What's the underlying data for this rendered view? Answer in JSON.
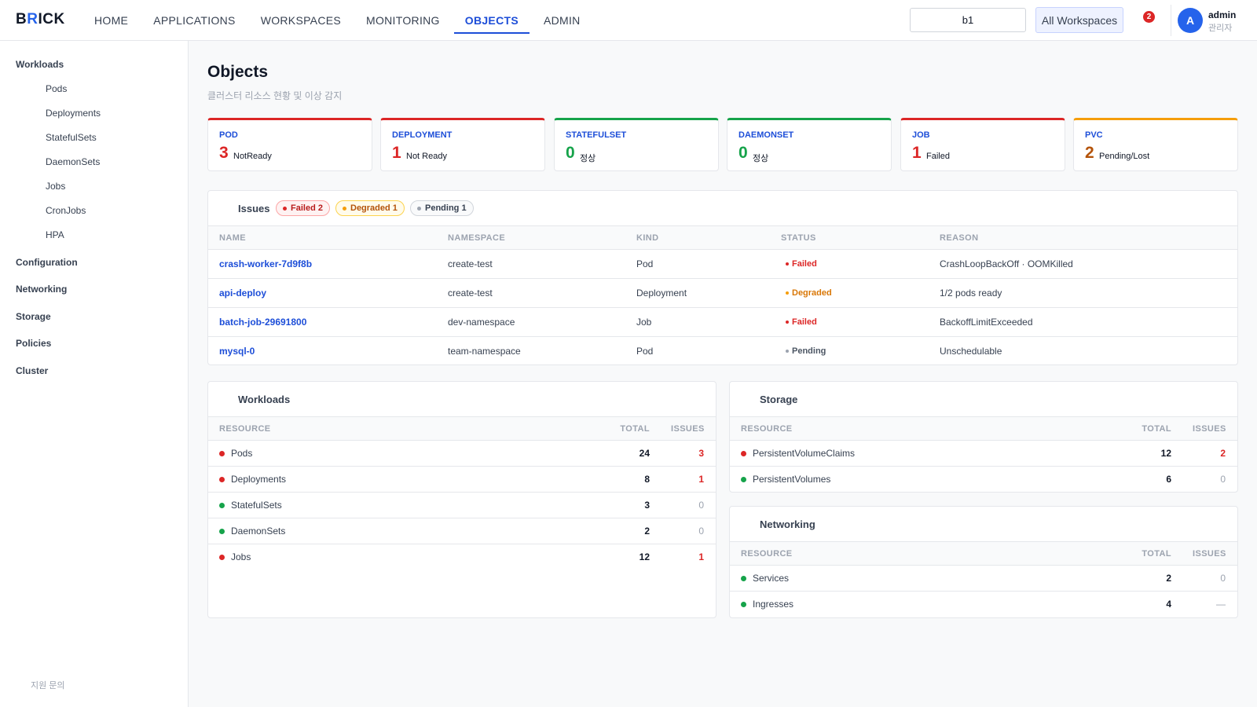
{
  "brand": {
    "b": "B",
    "r": "R",
    "rest": "ICK"
  },
  "nav": [
    "HOME",
    "APPLICATIONS",
    "WORKSPACES",
    "MONITORING",
    "OBJECTS",
    "ADMIN"
  ],
  "nav_active": "OBJECTS",
  "search": {
    "value": "b1"
  },
  "workspace_button": "All Workspaces",
  "notifications": "2",
  "user": {
    "initial": "A",
    "name": "admin",
    "role": "관리자"
  },
  "sidebar": {
    "workloads": "Workloads",
    "workload_items": [
      "Pods",
      "Deployments",
      "StatefulSets",
      "DaemonSets",
      "Jobs",
      "CronJobs",
      "HPA"
    ],
    "groups": [
      "Configuration",
      "Networking",
      "Storage",
      "Policies",
      "Cluster"
    ],
    "footer": "지원 문의"
  },
  "page": {
    "title": "Objects",
    "subtitle": "클러스터 리소스 현황 및 이상 감지"
  },
  "cards": [
    {
      "kind": "POD",
      "count": "3",
      "label": "NotReady",
      "color": "#dc2626"
    },
    {
      "kind": "DEPLOYMENT",
      "count": "1",
      "label": "Not Ready",
      "color": "#dc2626"
    },
    {
      "kind": "STATEFULSET",
      "count": "0",
      "label": "정상",
      "color": "#16a34a"
    },
    {
      "kind": "DAEMONSET",
      "count": "0",
      "label": "정상",
      "color": "#16a34a"
    },
    {
      "kind": "JOB",
      "count": "1",
      "label": "Failed",
      "color": "#dc2626"
    },
    {
      "kind": "PVC",
      "count": "2",
      "label": "Pending/Lost",
      "color": "#b45309",
      "border": "#f59e0b"
    }
  ],
  "issues": {
    "title": "Issues",
    "pills": {
      "failed": "Failed 2",
      "degraded": "Degraded 1",
      "pending": "Pending 1"
    },
    "headers": [
      "NAME",
      "NAMESPACE",
      "KIND",
      "STATUS",
      "REASON"
    ],
    "rows": [
      {
        "name": "crash-worker-7d9f8b",
        "namespace": "create-test",
        "kind": "Pod",
        "status": "Failed",
        "reason": "CrashLoopBackOff · OOMKilled"
      },
      {
        "name": "api-deploy",
        "namespace": "create-test",
        "kind": "Deployment",
        "status": "Degraded",
        "reason": "1/2 pods ready"
      },
      {
        "name": "batch-job-29691800",
        "namespace": "dev-namespace",
        "kind": "Job",
        "status": "Failed",
        "reason": "BackoffLimitExceeded"
      },
      {
        "name": "mysql-0",
        "namespace": "team-namespace",
        "kind": "Pod",
        "status": "Pending",
        "reason": "Unschedulable"
      }
    ]
  },
  "res_headers": {
    "resource": "RESOURCE",
    "total": "TOTAL",
    "issues": "ISSUES"
  },
  "workloads": {
    "title": "Workloads",
    "rows": [
      {
        "name": "Pods",
        "total": "24",
        "issues": "3",
        "ok": false
      },
      {
        "name": "Deployments",
        "total": "8",
        "issues": "1",
        "ok": false
      },
      {
        "name": "StatefulSets",
        "total": "3",
        "issues": "0",
        "ok": true
      },
      {
        "name": "DaemonSets",
        "total": "2",
        "issues": "0",
        "ok": true
      },
      {
        "name": "Jobs",
        "total": "12",
        "issues": "1",
        "ok": false
      }
    ]
  },
  "storage": {
    "title": "Storage",
    "rows": [
      {
        "name": "PersistentVolumeClaims",
        "total": "12",
        "issues": "2",
        "ok": false
      },
      {
        "name": "PersistentVolumes",
        "total": "6",
        "issues": "0",
        "ok": true
      }
    ]
  },
  "networking": {
    "title": "Networking",
    "rows": [
      {
        "name": "Services",
        "total": "2",
        "issues": "0",
        "ok": true
      },
      {
        "name": "Ingresses",
        "total": "4",
        "issues": "—",
        "ok": true
      }
    ]
  },
  "colors": {
    "accent": "#1d4ed8",
    "danger": "#dc2626",
    "ok": "#16a34a",
    "warn": "#f59e0b"
  }
}
